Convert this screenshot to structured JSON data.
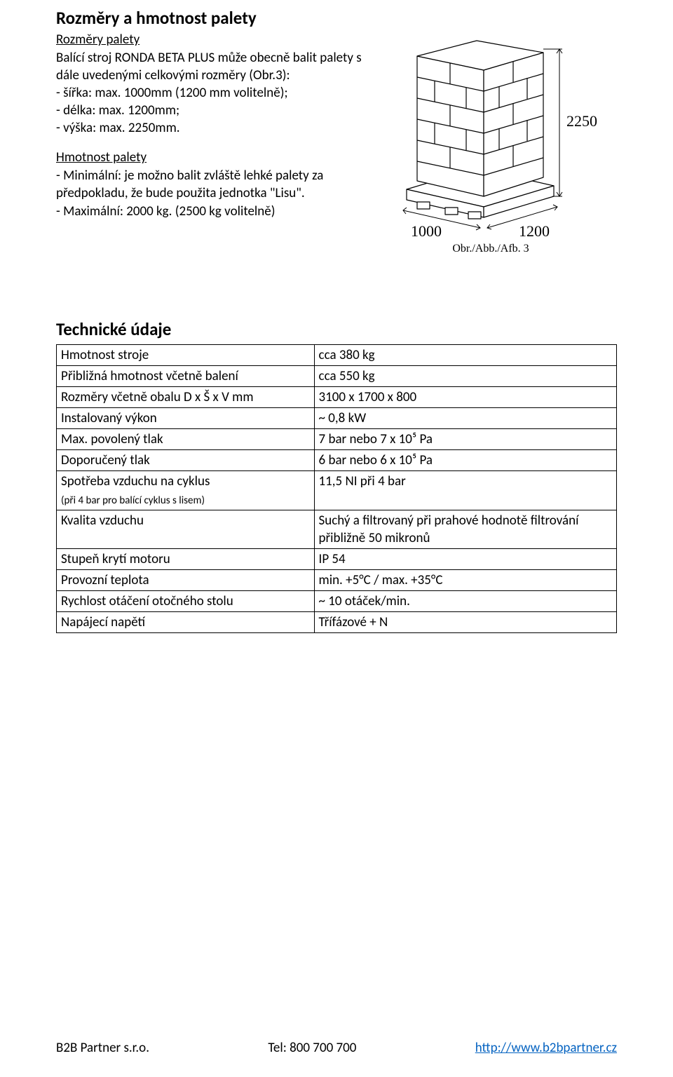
{
  "section1": {
    "title": "Rozměry a hmotnost palety",
    "sub_dimensions": "Rozměry palety",
    "p1": "Balící stroj RONDA BETA PLUS může obecně balit palety s dále uvedenými celkovými rozměry (Obr.3):",
    "b1": "- šířka: max. 1000mm (1200 mm volitelně);",
    "b2": "- délka: max. 1200mm;",
    "b3": "- výška: max. 2250mm.",
    "sub_weight": "Hmotnost palety",
    "w1": "- Minimální: je možno balit zvláště lehké palety za předpokladu, že bude použita jednotka \"Lisu\".",
    "w2": "- Maximální: 2000 kg. (2500 kg volitelně)"
  },
  "diagram": {
    "width_label": "1000",
    "depth_label": "1200",
    "height_label": "2250",
    "caption": "Obr./Abb./Afb. 3",
    "stroke": "#000000",
    "fill": "#ffffff"
  },
  "section2": {
    "title": "Technické údaje"
  },
  "specs": {
    "rows": [
      {
        "label": "Hmotnost stroje",
        "value": "cca 380 kg"
      },
      {
        "label": "Přibližná hmotnost včetně balení",
        "value": "cca 550 kg"
      },
      {
        "label": "Rozměry včetně obalu D x Š x V mm",
        "value": "3100 x 1700 x 800"
      },
      {
        "label": "Instalovaný výkon",
        "value": "~ 0,8 kW"
      },
      {
        "label": "Max. povolený tlak",
        "value": "7 bar nebo 7 x 10⁵ Pa"
      },
      {
        "label": "Doporučený tlak",
        "value": "6 bar nebo 6 x 10⁵ Pa"
      },
      {
        "label": "Spotřeba vzduchu na cyklus",
        "label_sub": "(při 4 bar pro balící cyklus s lisem)",
        "value": "11,5 NI při 4 bar"
      },
      {
        "label": "Kvalita vzduchu",
        "value": "Suchý a filtrovaný při prahové hodnotě filtrování přibližně 50 mikronů"
      },
      {
        "label": "Stupeň krytí motoru",
        "value": "IP 54"
      },
      {
        "label": "Provozní teplota",
        "value": "min. +5°C / max. +35°C"
      },
      {
        "label": "Rychlost otáčení otočného stolu",
        "value": "~ 10 otáček/min."
      },
      {
        "label": "Napájecí napětí",
        "value": "Třífázové + N"
      }
    ]
  },
  "footer": {
    "company": "B2B Partner s.r.o.",
    "tel": "Tel: 800 700 700",
    "url_text": "http://www.b2bpartner.cz"
  }
}
